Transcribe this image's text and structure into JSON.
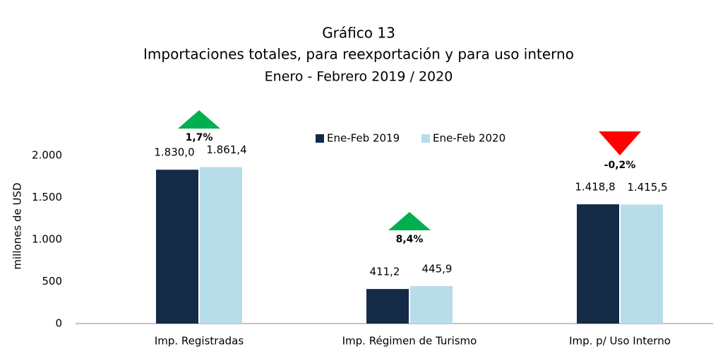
{
  "chart_data": {
    "type": "bar",
    "title": "Gráfico 13",
    "subtitle": "Importaciones totales, para reexportación y para uso interno",
    "period": "Enero - Febrero  2019 / 2020",
    "y_label": "millones de  USD",
    "categories": [
      "Imp. Registradas",
      "Imp. Régimen de Turismo",
      "Imp. p/ Uso Interno"
    ],
    "series": [
      {
        "name": "Ene-Feb 2019",
        "color": "#142a47",
        "values": [
          1830.0,
          411.2,
          1418.8
        ],
        "value_labels": [
          "1.830,0",
          "411,2",
          "1.418,8"
        ]
      },
      {
        "name": "Ene-Feb 2020",
        "color": "#b7dde8",
        "values": [
          1861.4,
          445.9,
          1415.5
        ],
        "value_labels": [
          "1.861,4",
          "445,9",
          "1.415,5"
        ]
      }
    ],
    "annotations": [
      {
        "text": "1,7%",
        "direction": "up",
        "color": "#00b050"
      },
      {
        "text": "8,4%",
        "direction": "up",
        "color": "#00b050"
      },
      {
        "text": "-0,2%",
        "direction": "down",
        "color": "#ff0000"
      }
    ],
    "ylim": [
      0,
      2000
    ],
    "yticks": [
      0,
      500,
      {
        "value": 1000,
        "label": "1.000"
      },
      {
        "value": 1500,
        "label": "1.500"
      },
      {
        "value": 2000,
        "label": "2.000"
      }
    ],
    "legend": "top",
    "grid": false
  }
}
